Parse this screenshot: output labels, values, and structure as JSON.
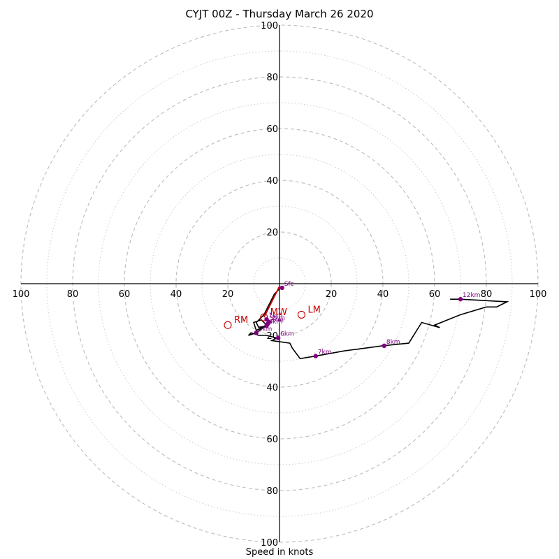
{
  "chart_data": {
    "type": "hodograph",
    "title": "CYJT 00Z - Thursday March 26 2020",
    "xlabel": "Speed in knots",
    "ring_max": 100,
    "x_ticks": [
      {
        "value": -100,
        "label": "100"
      },
      {
        "value": -80,
        "label": "80"
      },
      {
        "value": -60,
        "label": "60"
      },
      {
        "value": -40,
        "label": "40"
      },
      {
        "value": -20,
        "label": "20"
      },
      {
        "value": 20,
        "label": "20"
      },
      {
        "value": 40,
        "label": "40"
      },
      {
        "value": 60,
        "label": "60"
      },
      {
        "value": 80,
        "label": "80"
      },
      {
        "value": 100,
        "label": "100"
      }
    ],
    "y_ticks": [
      {
        "value": 100,
        "label": "100"
      },
      {
        "value": 80,
        "label": "80"
      },
      {
        "value": 60,
        "label": "60"
      },
      {
        "value": 40,
        "label": "40"
      },
      {
        "value": 20,
        "label": "20"
      },
      {
        "value": -20,
        "label": "20"
      },
      {
        "value": -40,
        "label": "40"
      },
      {
        "value": -60,
        "label": "60"
      },
      {
        "value": -80,
        "label": "80"
      },
      {
        "value": -100,
        "label": "100"
      }
    ],
    "major_rings": [
      20,
      40,
      60,
      80,
      100
    ],
    "minor_rings": [
      10,
      30,
      50,
      70,
      90
    ],
    "trace": [
      [
        0,
        -2
      ],
      [
        -2,
        -4
      ],
      [
        -4,
        -8
      ],
      [
        -6,
        -12
      ],
      [
        -9,
        -15
      ],
      [
        -8,
        -17
      ],
      [
        -4,
        -16
      ],
      [
        -9,
        -18
      ],
      [
        -10,
        -15
      ],
      [
        -7,
        -14
      ],
      [
        -5,
        -16
      ],
      [
        -9,
        -19
      ],
      [
        -12,
        -20
      ],
      [
        -11,
        -19
      ],
      [
        -8,
        -20
      ],
      [
        -5,
        -20
      ],
      [
        -1,
        -21
      ],
      [
        -3,
        -22
      ],
      [
        4,
        -23
      ],
      [
        5,
        -25
      ],
      [
        8,
        -29
      ],
      [
        14,
        -28
      ],
      [
        25,
        -26
      ],
      [
        40,
        -24
      ],
      [
        50,
        -23
      ],
      [
        55,
        -15
      ],
      [
        62,
        -17
      ],
      [
        60,
        -16
      ],
      [
        70,
        -12
      ],
      [
        80,
        -9
      ],
      [
        84,
        -9
      ],
      [
        86,
        -8
      ],
      [
        88,
        -7
      ],
      [
        70,
        -6
      ],
      [
        66,
        -6
      ]
    ],
    "height_markers": [
      {
        "label": "Sfc",
        "u": 1,
        "v": -1.6
      },
      {
        "label": "1km",
        "u": -5,
        "v": -13.8
      },
      {
        "label": "2km",
        "u": -4,
        "v": -14.8
      },
      {
        "label": "3km",
        "u": -4.5,
        "v": -15.5
      },
      {
        "label": "4km",
        "u": -5,
        "v": -16.2
      },
      {
        "label": "5km",
        "u": -9,
        "v": -19
      },
      {
        "label": "6km",
        "u": -0.5,
        "v": -21
      },
      {
        "label": "7km",
        "u": 14,
        "v": -28
      },
      {
        "label": "8km",
        "u": 40.5,
        "v": -24
      },
      {
        "label": "12km",
        "u": 70,
        "v": -6
      }
    ],
    "storm_motion": [
      {
        "label": "RM",
        "u": -20,
        "v": -16
      },
      {
        "label": "LM",
        "u": 8.5,
        "v": -12
      },
      {
        "label": "MW",
        "u": -6,
        "v": -13
      }
    ],
    "storm_motion_vector": {
      "from": [
        0,
        -1
      ],
      "to": [
        -6,
        -13
      ]
    },
    "colors": {
      "trace": "#000000",
      "markers": "#800080",
      "storm_motion": "#cc0000",
      "major_ring": "#bbbbbb",
      "minor_ring": "#cccccc",
      "axes": "#000000"
    }
  }
}
